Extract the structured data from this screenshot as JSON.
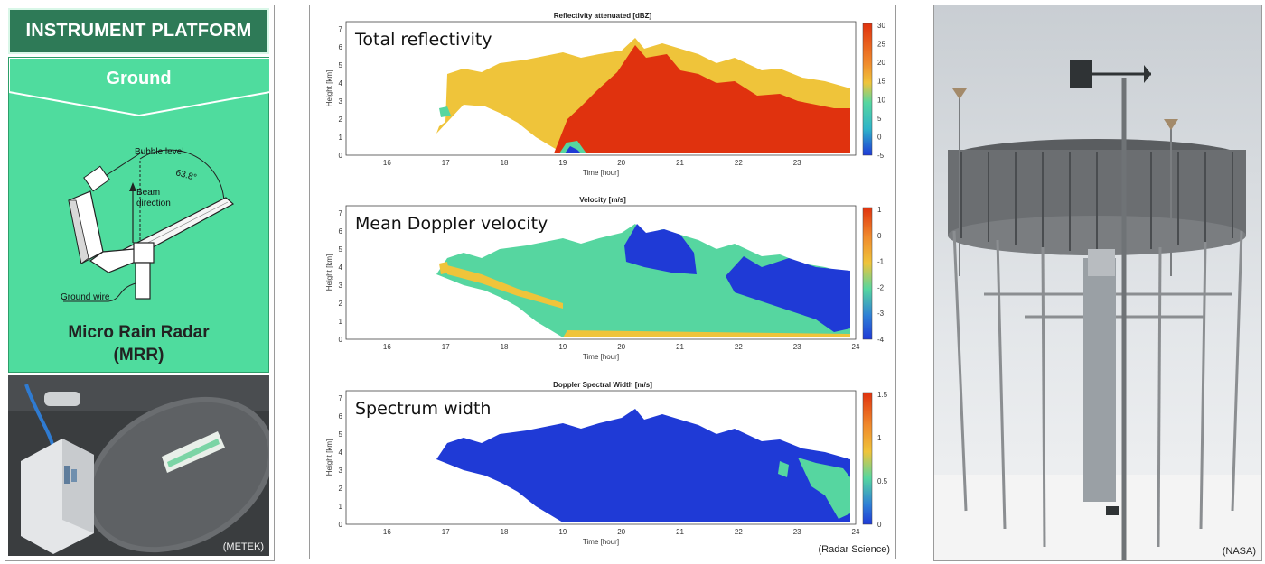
{
  "left_panel": {
    "title": "INSTRUMENT PLATFORM",
    "subtitle": "Ground",
    "diagram_labels": {
      "bubble_level": "Bubble level",
      "angle": "63.8°",
      "beam_direction_1": "Beam",
      "beam_direction_2": "direction",
      "ground_wire": "Ground wire"
    },
    "instrument_name_1": "Micro Rain Radar",
    "instrument_name_2": "(MRR)",
    "photo_credit": "(METEK)"
  },
  "middle_panel": {
    "credit": "(Radar Science)",
    "plots": [
      {
        "title": "Reflectivity attenuated [dBZ]",
        "overlay": "Total reflectivity",
        "colorbar_ticks": [
          "30",
          "25",
          "20",
          "15",
          "10",
          "5",
          "0",
          "-5"
        ]
      },
      {
        "title": "Velocity [m/s]",
        "overlay": "Mean Doppler velocity",
        "colorbar_ticks": [
          "1",
          "0",
          "-1",
          "-2",
          "-3",
          "-4"
        ]
      },
      {
        "title": "Doppler Spectral Width [m/s]",
        "overlay": "Spectrum width",
        "colorbar_ticks": [
          "1.5",
          "1",
          "0.5",
          "0"
        ]
      }
    ],
    "y_ticks": [
      "7",
      "6",
      "5",
      "4",
      "3",
      "2",
      "1",
      "0"
    ],
    "x_ticks_short": [
      "16",
      "17",
      "18",
      "19",
      "20",
      "21",
      "22",
      "23"
    ],
    "x_ticks_full": [
      "16",
      "17",
      "18",
      "19",
      "20",
      "21",
      "22",
      "23",
      "24"
    ],
    "xlabel": "Time [hour]",
    "ylabel": "Height [km]"
  },
  "right_panel": {
    "credit": "(NASA)"
  },
  "colors": {
    "banner": "#2e7a57",
    "panel_green": "#4fdc9e",
    "red": "#e0320e",
    "orange": "#f7a12a",
    "yellow": "#efc43a",
    "teal": "#56d6a0",
    "blue": "#1f3ad6"
  }
}
